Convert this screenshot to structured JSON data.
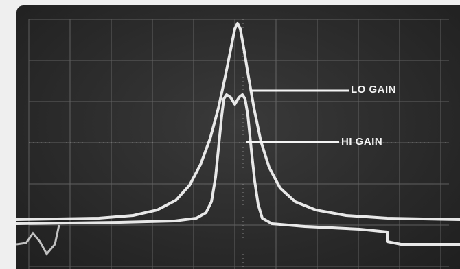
{
  "traces": {
    "lo_gain_label": "LO GAIN",
    "hi_gain_label": "HI GAIN"
  },
  "colors": {
    "screen": "#2b2b2b",
    "trace": "#f2f2f2",
    "graticule": "#9a9a9a",
    "bezel": "#efefef"
  }
}
